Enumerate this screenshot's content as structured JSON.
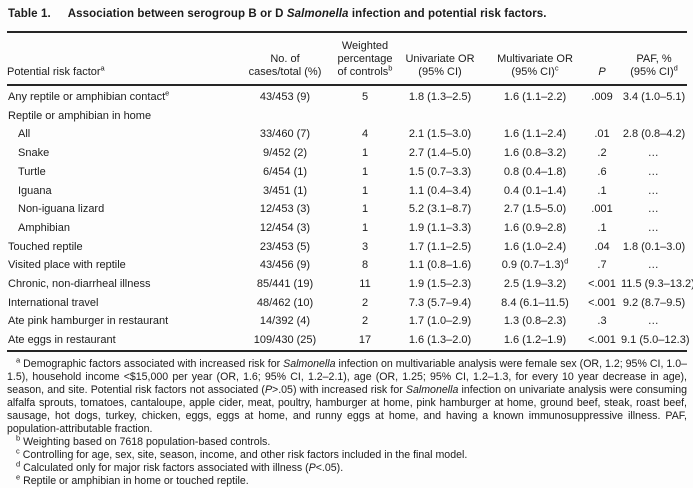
{
  "table": {
    "label": "Table 1.",
    "title": "Association between serogroup B or D *Salmonella* infection and potential risk factors.",
    "columns": [
      {
        "id": "risk-factor",
        "align": "left",
        "lines": [
          "Potential risk factor^a"
        ]
      },
      {
        "id": "cases-total",
        "align": "center",
        "lines": [
          "No. of",
          "cases/total (%)"
        ]
      },
      {
        "id": "weighted-pct",
        "align": "center",
        "lines": [
          "Weighted",
          "percentage",
          "of controls^b"
        ]
      },
      {
        "id": "univariate-or",
        "align": "center",
        "lines": [
          "Univariate OR",
          "(95% CI)"
        ]
      },
      {
        "id": "multivariate-or",
        "align": "center",
        "lines": [
          "Multivariate OR",
          "(95% CI)^c"
        ]
      },
      {
        "id": "p-value",
        "align": "center",
        "lines": [
          "*P*"
        ]
      },
      {
        "id": "paf",
        "align": "center",
        "lines": [
          "PAF, %",
          "(95% CI)^d"
        ]
      }
    ],
    "rows": [
      {
        "label": "Any reptile or amphibian contact^e",
        "indent": false,
        "cells": [
          "43/453 (9)",
          "5",
          "1.8 (1.3–2.5)",
          "1.6 (1.1–2.2)",
          ".009",
          "3.4 (1.0–5.1)"
        ]
      },
      {
        "label": "Reptile or amphibian in home",
        "indent": false,
        "cells": [
          "",
          "",
          "",
          "",
          "",
          ""
        ]
      },
      {
        "label": "All",
        "indent": true,
        "cells": [
          "33/460 (7)",
          "4",
          "2.1 (1.5–3.0)",
          "1.6 (1.1–2.4)",
          ".01",
          "2.8 (0.8–4.2)"
        ]
      },
      {
        "label": "Snake",
        "indent": true,
        "cells": [
          "9/452 (2)",
          "1",
          "2.7 (1.4–5.0)",
          "1.6 (0.8–3.2)",
          ".2",
          "…"
        ]
      },
      {
        "label": "Turtle",
        "indent": true,
        "cells": [
          "6/454 (1)",
          "1",
          "1.5 (0.7–3.3)",
          "0.8 (0.4–1.8)",
          ".6",
          "…"
        ]
      },
      {
        "label": "Iguana",
        "indent": true,
        "cells": [
          "3/451 (1)",
          "1",
          "1.1 (0.4–3.4)",
          "0.4 (0.1–1.4)",
          ".1",
          "…"
        ]
      },
      {
        "label": "Non-iguana lizard",
        "indent": true,
        "cells": [
          "12/453 (3)",
          "1",
          "5.2 (3.1–8.7)",
          "2.7 (1.5–5.0)",
          ".001",
          "…"
        ]
      },
      {
        "label": "Amphibian",
        "indent": true,
        "cells": [
          "12/454 (3)",
          "1",
          "1.9 (1.1–3.3)",
          "1.6 (0.9–2.8)",
          ".1",
          "…"
        ]
      },
      {
        "label": "Touched reptile",
        "indent": false,
        "cells": [
          "23/453 (5)",
          "3",
          "1.7 (1.1–2.5)",
          "1.6 (1.0–2.4)",
          ".04",
          "1.8 (0.1–3.0)"
        ]
      },
      {
        "label": "Visited place with reptile",
        "indent": false,
        "cells": [
          "43/456 (9)",
          "8",
          "1.1 (0.8–1.6)",
          "0.9 (0.7–1.3)^d",
          ".7",
          "…"
        ]
      },
      {
        "label": "Chronic, non-diarrheal illness",
        "indent": false,
        "cells": [
          "85/441 (19)",
          "11",
          "1.9 (1.5–2.3)",
          "2.5 (1.9–3.2)",
          "<.001",
          "11.5 (9.3–13.2)"
        ]
      },
      {
        "label": "International travel",
        "indent": false,
        "cells": [
          "48/462 (10)",
          "2",
          "7.3 (5.7–9.4)",
          "8.4 (6.1–11.5)",
          "<.001",
          "9.2 (8.7–9.5)"
        ]
      },
      {
        "label": "Ate pink hamburger in restaurant",
        "indent": false,
        "cells": [
          "14/392 (4)",
          "2",
          "1.7 (1.0–2.9)",
          "1.3 (0.8–2.3)",
          ".3",
          "…"
        ]
      },
      {
        "label": "Ate eggs in restaurant",
        "indent": false,
        "cells": [
          "109/430 (25)",
          "17",
          "1.6 (1.3–2.0)",
          "1.6 (1.2–1.9)",
          "<.001",
          "9.1 (5.0–12.3)"
        ]
      }
    ],
    "footnotes": [
      {
        "sup": "a",
        "justify": true,
        "text": "Demographic factors associated with increased risk for *Salmonella* infection on multivariable analysis were female sex (OR, 1.2; 95% CI, 1.0–1.5), household income <$15,000 per year (OR, 1.6; 95% CI, 1.2–2.1), age (OR, 1.25; 95% CI, 1.2–1.3, for every 10 year decrease in age), season, and site. Potential risk factors not associated (*P*>.05) with increased risk for *Salmonella* infection on univariate analysis were consuming alfalfa sprouts, tomatoes, cantaloupe, apple cider, meat, poultry, hamburger at home, pink hamburger at home, ground beef, steak, roast beef, sausage, hot dogs, turkey, chicken, eggs, eggs at home, and runny eggs at home, and having a known immunosuppressive illness. PAF, population-attributable fraction."
      },
      {
        "sup": "b",
        "justify": false,
        "text": "Weighting based on 7618 population-based controls."
      },
      {
        "sup": "c",
        "justify": false,
        "text": "Controlling for age, sex, site, season, income, and other risk factors included in the final model."
      },
      {
        "sup": "d",
        "justify": false,
        "text": "Calculated only for major risk factors associated with illness (*P*<.05)."
      },
      {
        "sup": "e",
        "justify": false,
        "text": "Reptile or amphibian in home or touched reptile."
      }
    ]
  }
}
